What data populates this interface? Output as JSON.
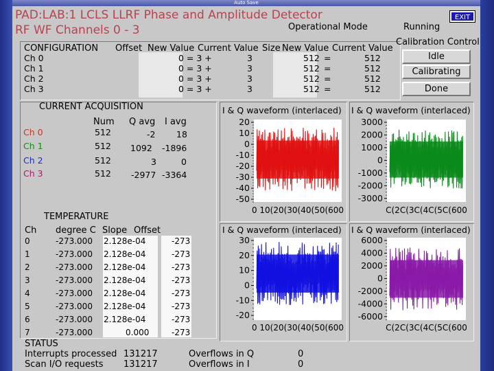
{
  "window": {
    "title": "Auto Save"
  },
  "header": {
    "title": "PAD:LAB:1 LCLS LLRF Phase and Amplitude Detector",
    "subtitle": "RF WF Channels 0 - 3",
    "mode_label": "Operational Mode",
    "mode_value": "Running",
    "exit_label": "EXIT"
  },
  "config": {
    "title": "CONFIGURATION",
    "col_offset": "Offset",
    "col_new": "New Value",
    "col_current": "Current Value",
    "col_size": "Size",
    "col_new2": "New Value",
    "col_current2": "Current Value",
    "rows": [
      {
        "ch": "Ch 0",
        "offset_eq": "0 = 3 +",
        "offset_cur": "3",
        "size": "512",
        "eq": "=",
        "size_cur": "512"
      },
      {
        "ch": "Ch 1",
        "offset_eq": "0 = 3 +",
        "offset_cur": "3",
        "size": "512",
        "eq": "=",
        "size_cur": "512"
      },
      {
        "ch": "Ch 2",
        "offset_eq": "0 = 3 +",
        "offset_cur": "3",
        "size": "512",
        "eq": "=",
        "size_cur": "512"
      },
      {
        "ch": "Ch 3",
        "offset_eq": "0 = 3 +",
        "offset_cur": "3",
        "size": "512",
        "eq": "=",
        "size_cur": "512"
      }
    ]
  },
  "calibration": {
    "title": "Calibration Control",
    "buttons": [
      "Idle",
      "Calibrating",
      "Done"
    ]
  },
  "acquisition": {
    "title": "CURRENT ACQUISITION",
    "col_num": "Num",
    "col_q": "Q avg",
    "col_i": "I avg",
    "rows": [
      {
        "ch": "Ch 0",
        "num": "512",
        "q": "-2",
        "i": "18",
        "color": "#cc2222"
      },
      {
        "ch": "Ch 1",
        "num": "512",
        "q": "1092",
        "i": "-1896",
        "color": "#1a8a1a"
      },
      {
        "ch": "Ch 2",
        "num": "512",
        "q": "3",
        "i": "0",
        "color": "#1a2bd6"
      },
      {
        "ch": "Ch 3",
        "num": "512",
        "q": "-2977",
        "i": "-3364",
        "color": "#a0206b"
      }
    ]
  },
  "temperature": {
    "title": "TEMPERATURE",
    "col_ch": "Ch",
    "col_deg": "degree C",
    "col_slope": "Slope",
    "col_offset": "Offset",
    "rows": [
      {
        "ch": "0",
        "deg": "-273.000",
        "slope": "2.128e-04",
        "offset": "-273"
      },
      {
        "ch": "1",
        "deg": "-273.000",
        "slope": "2.128e-04",
        "offset": "-273"
      },
      {
        "ch": "2",
        "deg": "-273.000",
        "slope": "2.128e-04",
        "offset": "-273"
      },
      {
        "ch": "3",
        "deg": "-273.000",
        "slope": "2.128e-04",
        "offset": "-273"
      },
      {
        "ch": "4",
        "deg": "-273.000",
        "slope": "2.128e-04",
        "offset": "-273"
      },
      {
        "ch": "5",
        "deg": "-273.000",
        "slope": "2.128e-04",
        "offset": "-273"
      },
      {
        "ch": "6",
        "deg": "-273.000",
        "slope": "2.128e-04",
        "offset": "-273"
      },
      {
        "ch": "7",
        "deg": "-273.000",
        "slope": "0.000",
        "offset": "-273"
      }
    ]
  },
  "status": {
    "title": "STATUS",
    "interrupts_label": "Interrupts processed",
    "interrupts_value": "131217",
    "scan_label": "Scan I/O requests",
    "scan_value": "131217",
    "ovq_label": "Overflows in Q",
    "ovq_value": "0",
    "ovi_label": "Overflows in I",
    "ovi_value": "0"
  },
  "plots": [
    {
      "title": "I & Q waveform (interlaced)",
      "color": "#e01010",
      "yticks": [
        "20",
        "10",
        "0",
        "-10",
        "-20",
        "-30",
        "-40",
        "-50"
      ],
      "xticks": "0 10(20(30(40(50(600",
      "amp": [
        0.1,
        0.87
      ],
      "chart_type": "line"
    },
    {
      "title": "I & Q waveform (interlaced)",
      "color": "#0a8a1a",
      "yticks": [
        "3000",
        "2000",
        "1000",
        "0",
        "-1000",
        "-2000",
        "-3000"
      ],
      "xticks": "C(2C(3C(4C(5C(600",
      "amp": [
        0.12,
        0.85
      ],
      "chart_type": "line"
    },
    {
      "title": "I & Q waveform (interlaced)",
      "color": "#1010e0",
      "yticks": [
        "30",
        "20",
        "10",
        "0",
        "-10",
        "-20"
      ],
      "xticks": "0 10(20(30(40(50(600",
      "amp": [
        0.05,
        0.82
      ],
      "chart_type": "line"
    },
    {
      "title": "I & Q waveform (interlaced)",
      "color": "#8a1aa8",
      "yticks": [
        "6000",
        "4000",
        "2000",
        "0",
        "-2000",
        "-4000",
        "-6000"
      ],
      "xticks": "C(2C(3C(4C(5C(600",
      "amp": [
        0.12,
        0.88
      ],
      "chart_type": "line"
    }
  ]
}
